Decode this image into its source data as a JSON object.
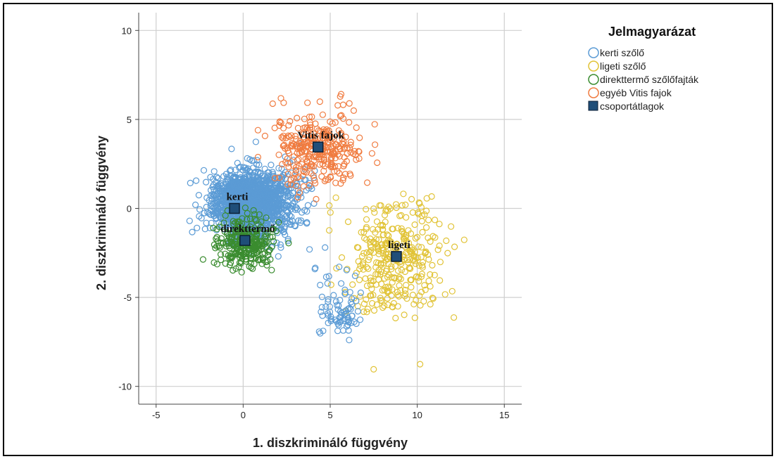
{
  "chart_data": {
    "type": "scatter",
    "xlabel": "1. diszkrimináló függvény",
    "ylabel": "2. diszkrimináló függvény",
    "xlim": [
      -6,
      16
    ],
    "ylim": [
      -11,
      11
    ],
    "xticks": [
      -5,
      0,
      5,
      10,
      15
    ],
    "yticks": [
      10,
      5,
      0,
      -5,
      -10
    ],
    "grid": true,
    "legend": {
      "title": "Jelmagyarázat",
      "placement": "right",
      "entries": [
        {
          "label": "kerti szőlő",
          "marker": "circle",
          "color": "#5b9bd5"
        },
        {
          "label": "ligeti szőlő",
          "marker": "circle",
          "color": "#e1c336"
        },
        {
          "label": "direkttermő szőlőfajták",
          "marker": "circle",
          "color": "#3a8c2f"
        },
        {
          "label": "egyéb Vitis fajok",
          "marker": "circle",
          "color": "#f07b3f"
        },
        {
          "label": "csoportátlagok",
          "marker": "square",
          "color": "#1f4e79"
        }
      ]
    },
    "series": [
      {
        "name": "kerti szőlő",
        "color": "#5b9bd5",
        "clusters": [
          {
            "cx": 0.3,
            "cy": 0.3,
            "sx": 1.0,
            "sy": 0.9,
            "n": 1400
          },
          {
            "cx": 2.0,
            "cy": 0.4,
            "sx": 1.0,
            "sy": 1.0,
            "n": 160
          },
          {
            "cx": 5.7,
            "cy": -6.0,
            "sx": 0.55,
            "sy": 0.65,
            "n": 70
          },
          {
            "cx": 4.8,
            "cy": -3.2,
            "sx": 0.7,
            "sy": 0.9,
            "n": 12
          }
        ]
      },
      {
        "name": "ligeti szőlő",
        "color": "#e1c336",
        "clusters": [
          {
            "cx": 8.7,
            "cy": -2.9,
            "sx": 1.4,
            "sy": 1.7,
            "n": 340
          }
        ]
      },
      {
        "name": "direkttermő szőlőfajták",
        "color": "#3a8c2f",
        "clusters": [
          {
            "cx": 0.1,
            "cy": -2.0,
            "sx": 0.8,
            "sy": 0.75,
            "n": 280
          }
        ]
      },
      {
        "name": "egyéb Vitis fajok",
        "color": "#f07b3f",
        "clusters": [
          {
            "cx": 4.3,
            "cy": 3.3,
            "sx": 1.3,
            "sy": 1.05,
            "n": 300
          }
        ]
      }
    ],
    "centroids": [
      {
        "label": "kerti",
        "x": -0.5,
        "y": 0.0
      },
      {
        "label": "direkttermő",
        "x": 0.1,
        "y": -1.8
      },
      {
        "label": "Vitis fajok",
        "x": 4.3,
        "y": 3.45
      },
      {
        "label": "ligeti",
        "x": 8.8,
        "y": -2.7
      }
    ]
  }
}
